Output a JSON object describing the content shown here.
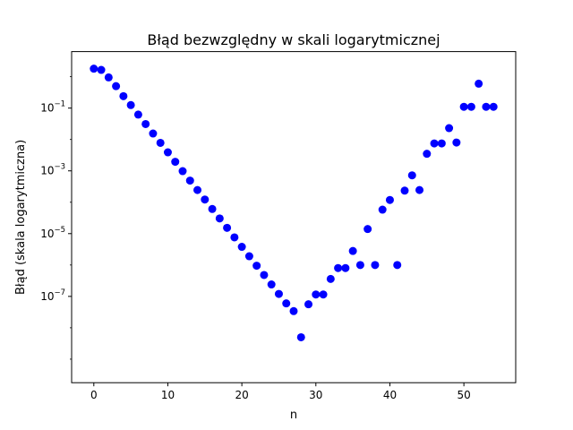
{
  "chart_data": {
    "type": "scatter",
    "title": "Błąd bezwzględny w skali logarytmicznej",
    "xlabel": "n",
    "ylabel": "Błąd (skala logarytmiczna)",
    "xlim": [
      -3,
      57
    ],
    "ylim_log10": [
      -9.75,
      0.8
    ],
    "yscale": "log",
    "grid": false,
    "marker_color": "#0000ff",
    "x_ticks": [
      0,
      10,
      20,
      30,
      40,
      50
    ],
    "y_tick_exponents": [
      -7,
      -5,
      -3,
      -1
    ],
    "y_tick_base": "10",
    "series": [
      {
        "x": [
          0,
          1,
          2,
          3,
          4,
          5,
          6,
          7,
          8,
          9,
          10,
          11,
          12,
          13,
          14,
          15,
          16,
          17,
          18,
          19,
          20,
          21,
          22,
          23,
          24,
          25,
          26,
          27,
          28,
          29,
          30,
          31,
          32,
          33,
          34,
          35,
          36,
          37,
          38,
          39,
          40,
          41,
          42,
          43,
          44,
          45,
          46,
          47,
          48,
          49,
          50,
          51,
          52,
          53,
          54
        ],
        "y": [
          1.8,
          1.65,
          0.95,
          0.5,
          0.24,
          0.125,
          0.062,
          0.031,
          0.0155,
          0.0078,
          0.0039,
          0.00195,
          0.00098,
          0.00049,
          0.000245,
          0.000122,
          6.1e-05,
          3.05e-05,
          1.53e-05,
          7.6e-06,
          3.8e-06,
          1.9e-06,
          9.5e-07,
          4.8e-07,
          2.4e-07,
          1.2e-07,
          6e-08,
          3.4e-08,
          5e-09,
          5.6e-08,
          1.15e-07,
          1.15e-07,
          3.6e-07,
          8e-07,
          8e-07,
          2.8e-06,
          1e-06,
          1.4e-05,
          1e-06,
          5.8e-05,
          0.000118,
          1e-06,
          0.000235,
          0.00072,
          0.000245,
          0.0035,
          0.0075,
          0.0075,
          0.023,
          0.008,
          0.11,
          0.11,
          0.6,
          0.11,
          0.11
        ]
      }
    ]
  }
}
